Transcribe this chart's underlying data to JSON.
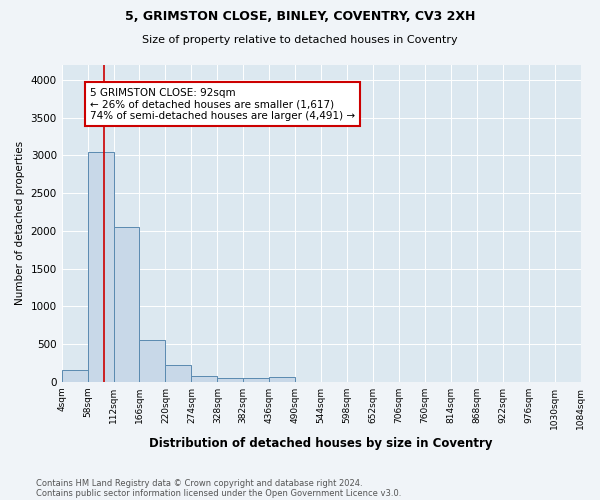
{
  "title1": "5, GRIMSTON CLOSE, BINLEY, COVENTRY, CV3 2XH",
  "title2": "Size of property relative to detached houses in Coventry",
  "xlabel": "Distribution of detached houses by size in Coventry",
  "ylabel": "Number of detached properties",
  "bin_edges": [
    4,
    58,
    112,
    166,
    220,
    274,
    328,
    382,
    436,
    490,
    544,
    598,
    652,
    706,
    760,
    814,
    868,
    922,
    976,
    1030,
    1084
  ],
  "bin_labels": [
    "4sqm",
    "58sqm",
    "112sqm",
    "166sqm",
    "220sqm",
    "274sqm",
    "328sqm",
    "382sqm",
    "436sqm",
    "490sqm",
    "544sqm",
    "598sqm",
    "652sqm",
    "706sqm",
    "760sqm",
    "814sqm",
    "868sqm",
    "922sqm",
    "976sqm",
    "1030sqm",
    "1084sqm"
  ],
  "bar_heights": [
    150,
    3050,
    2050,
    550,
    220,
    80,
    50,
    50,
    60,
    0,
    0,
    0,
    0,
    0,
    0,
    0,
    0,
    0,
    0,
    0
  ],
  "bar_color": "#c8d8e8",
  "bar_edge_color": "#5a8ab0",
  "property_size": 92,
  "property_line_color": "#cc0000",
  "annotation_text": "5 GRIMSTON CLOSE: 92sqm\n← 26% of detached houses are smaller (1,617)\n74% of semi-detached houses are larger (4,491) →",
  "annotation_box_color": "#ffffff",
  "annotation_edge_color": "#cc0000",
  "ylim": [
    0,
    4200
  ],
  "yticks": [
    0,
    500,
    1000,
    1500,
    2000,
    2500,
    3000,
    3500,
    4000
  ],
  "footnote1": "Contains HM Land Registry data © Crown copyright and database right 2024.",
  "footnote2": "Contains public sector information licensed under the Open Government Licence v3.0.",
  "figure_color": "#f0f4f8",
  "plot_background_color": "#dce8f0"
}
